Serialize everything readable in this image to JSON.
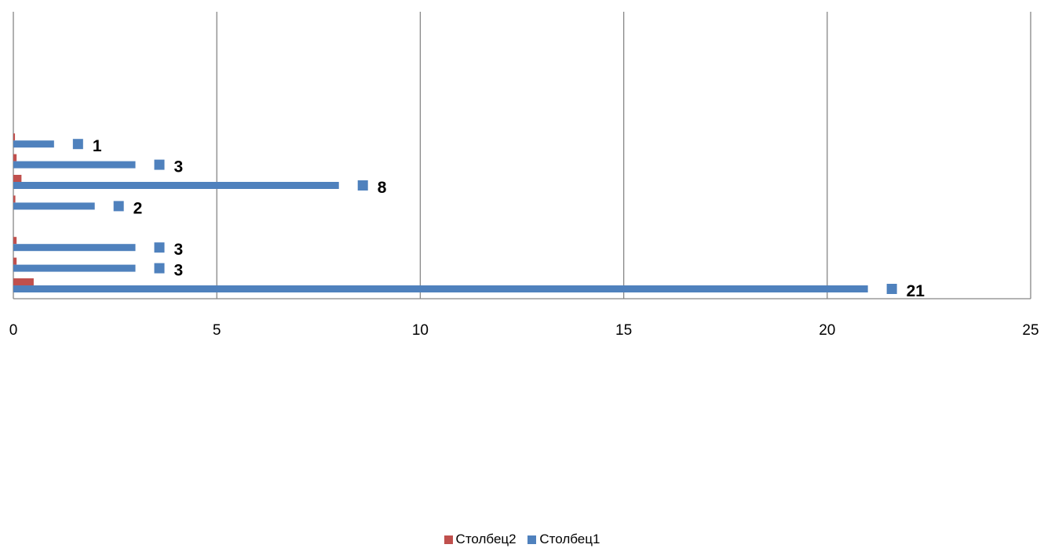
{
  "chart_data": {
    "type": "bar",
    "orientation": "horizontal",
    "xlim": [
      0,
      25
    ],
    "x_ticks": [
      0,
      5,
      10,
      15,
      20,
      25
    ],
    "category_count": 8,
    "grid": "vertical",
    "series": [
      {
        "name": "Столбец1",
        "color": "#4F81BD",
        "values": [
          21,
          3,
          3,
          null,
          2,
          8,
          3,
          1
        ]
      },
      {
        "name": "Столбец2",
        "color": "#C0504D",
        "values": [
          0.5,
          0.08,
          0.08,
          null,
          0.05,
          0.2,
          0.08,
          0.04
        ]
      }
    ],
    "data_labels": {
      "series": "Столбец1",
      "values": [
        "21",
        "3",
        "3",
        "",
        "2",
        "8",
        "3",
        "1"
      ]
    },
    "legend": {
      "position": "bottom",
      "order": [
        "Столбец2",
        "Столбец1"
      ]
    }
  }
}
